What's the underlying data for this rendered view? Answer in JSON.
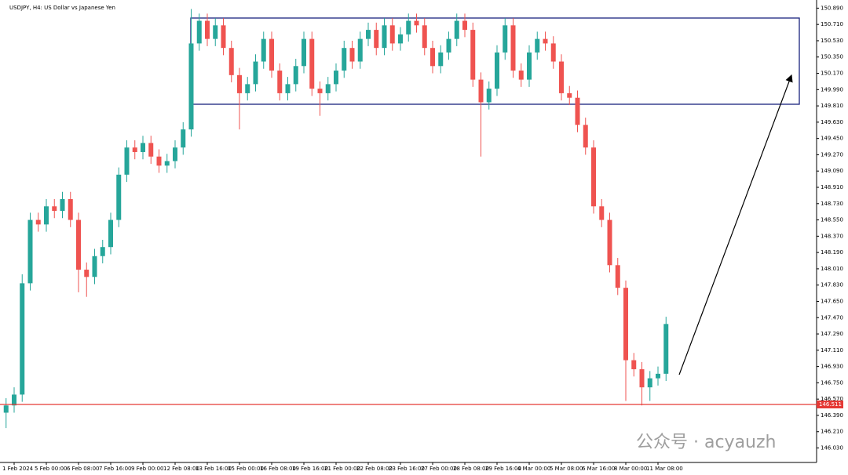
{
  "chart_data": {
    "type": "candlestick",
    "title": "USDJPY, H4: US Dollar vs Japanese Yen",
    "watermark": "公众号 · acyauzh",
    "up_color": "#26a69a",
    "down_color": "#ef5350",
    "price_line": 146.511,
    "price_line_color": "#e53935",
    "categories": [
      null,
      "1 Feb 2024",
      null,
      null,
      null,
      "5 Feb 00:00",
      null,
      null,
      null,
      "6 Feb 08:00",
      null,
      null,
      null,
      "7 Feb 16:00",
      null,
      null,
      null,
      "9 Feb 00:00",
      null,
      null,
      null,
      "12 Feb 08:00",
      null,
      null,
      null,
      "13 Feb 16:00",
      null,
      null,
      null,
      "15 Feb 00:00",
      null,
      null,
      null,
      "16 Feb 08:00",
      null,
      null,
      null,
      "19 Feb 16:00",
      null,
      null,
      null,
      "21 Feb 00:00",
      null,
      null,
      null,
      "22 Feb 08:00",
      null,
      null,
      null,
      "23 Feb 16:00",
      null,
      null,
      null,
      "27 Feb 00:00",
      null,
      null,
      null,
      "28 Feb 08:00",
      null,
      null,
      null,
      "29 Feb 16:00",
      null,
      null,
      null,
      "4 Mar 00:00",
      null,
      null,
      null,
      "5 Mar 08:00",
      null,
      null,
      null,
      "6 Mar 16:00",
      null,
      null,
      null,
      "8 Mar 00:00",
      null,
      null,
      null,
      "11 Mar 08:00",
      null
    ],
    "open": [
      146.42,
      146.5,
      146.62,
      147.85,
      148.55,
      148.5,
      148.7,
      148.65,
      148.78,
      148.55,
      148.0,
      147.92,
      148.15,
      148.25,
      148.55,
      149.05,
      149.35,
      149.3,
      149.4,
      149.25,
      149.15,
      149.2,
      149.35,
      149.55,
      150.5,
      150.75,
      150.55,
      150.7,
      150.45,
      150.15,
      149.95,
      150.05,
      150.3,
      150.55,
      150.2,
      149.95,
      150.05,
      150.25,
      150.55,
      150.0,
      149.95,
      150.05,
      150.2,
      150.45,
      150.3,
      150.55,
      150.65,
      150.45,
      150.7,
      150.5,
      150.6,
      150.75,
      150.7,
      150.45,
      150.25,
      150.4,
      150.55,
      150.75,
      150.65,
      150.1,
      149.85,
      150.0,
      150.4,
      150.7,
      150.2,
      150.1,
      150.4,
      150.55,
      150.5,
      150.3,
      149.95,
      149.9,
      149.6,
      149.35,
      148.7,
      148.55,
      148.05,
      147.8,
      147.0,
      146.9,
      146.7,
      146.8,
      146.85
    ],
    "high": [
      146.58,
      146.7,
      147.95,
      148.63,
      148.63,
      148.78,
      148.78,
      148.86,
      148.86,
      148.63,
      148.08,
      148.23,
      148.33,
      148.63,
      149.13,
      149.43,
      149.43,
      149.48,
      149.48,
      149.33,
      149.28,
      149.43,
      149.63,
      150.88,
      150.83,
      150.83,
      150.78,
      150.78,
      150.53,
      150.23,
      150.13,
      150.38,
      150.63,
      150.63,
      150.28,
      150.13,
      150.33,
      150.63,
      150.63,
      150.08,
      150.13,
      150.28,
      150.53,
      150.53,
      150.63,
      150.73,
      150.73,
      150.78,
      150.78,
      150.68,
      150.83,
      150.83,
      150.78,
      150.53,
      150.48,
      150.63,
      150.83,
      150.83,
      150.73,
      150.18,
      150.08,
      150.48,
      150.78,
      150.78,
      150.28,
      150.48,
      150.63,
      150.63,
      150.58,
      150.38,
      150.03,
      149.98,
      149.68,
      149.43,
      148.78,
      148.63,
      148.13,
      147.88,
      147.08,
      146.98,
      146.88,
      146.93,
      147.48
    ],
    "low": [
      146.25,
      146.42,
      146.54,
      147.77,
      148.42,
      148.42,
      148.57,
      148.57,
      148.47,
      147.75,
      147.7,
      147.84,
      148.07,
      148.17,
      148.47,
      148.97,
      149.22,
      149.22,
      149.17,
      149.07,
      149.07,
      149.12,
      149.27,
      149.47,
      150.42,
      150.47,
      150.47,
      150.37,
      150.07,
      149.55,
      149.87,
      149.97,
      150.22,
      150.12,
      149.87,
      149.87,
      149.97,
      150.17,
      149.92,
      149.7,
      149.87,
      149.97,
      150.12,
      150.22,
      150.22,
      150.47,
      150.37,
      150.37,
      150.42,
      150.42,
      150.52,
      150.62,
      150.37,
      150.17,
      150.17,
      150.32,
      150.47,
      150.57,
      150.02,
      149.25,
      149.77,
      149.92,
      150.32,
      150.12,
      150.02,
      150.02,
      150.32,
      150.42,
      150.22,
      149.87,
      149.82,
      149.52,
      149.27,
      148.62,
      148.47,
      147.97,
      147.72,
      146.55,
      146.82,
      146.5,
      146.55,
      146.72,
      146.77
    ],
    "close": [
      146.5,
      146.62,
      147.85,
      148.55,
      148.5,
      148.7,
      148.65,
      148.78,
      148.55,
      148.0,
      147.92,
      148.15,
      148.25,
      148.55,
      149.05,
      149.35,
      149.3,
      149.4,
      149.25,
      149.15,
      149.2,
      149.35,
      149.55,
      150.5,
      150.75,
      150.55,
      150.7,
      150.45,
      150.15,
      149.95,
      150.05,
      150.3,
      150.55,
      150.2,
      149.95,
      150.05,
      150.25,
      150.55,
      150.0,
      149.95,
      150.05,
      150.2,
      150.45,
      150.3,
      150.55,
      150.65,
      150.45,
      150.7,
      150.5,
      150.6,
      150.75,
      150.7,
      150.45,
      150.25,
      150.4,
      150.55,
      150.75,
      150.65,
      150.1,
      149.85,
      150.0,
      150.4,
      150.7,
      150.2,
      150.1,
      150.4,
      150.55,
      150.5,
      150.3,
      149.95,
      149.9,
      149.6,
      149.35,
      148.7,
      148.55,
      148.05,
      147.8,
      147.0,
      146.9,
      146.7,
      146.8,
      146.85,
      147.4
    ],
    "ylim": [
      145.87,
      150.98
    ],
    "yticks": [
      {
        "value": 150.89,
        "label": "150.890"
      },
      {
        "value": 150.71,
        "label": "150.710"
      },
      {
        "value": 150.53,
        "label": "150.530"
      },
      {
        "value": 150.35,
        "label": "150.350"
      },
      {
        "value": 150.17,
        "label": "150.170"
      },
      {
        "value": 149.99,
        "label": "149.990"
      },
      {
        "value": 149.81,
        "label": "149.810"
      },
      {
        "value": 149.63,
        "label": "149.630"
      },
      {
        "value": 149.45,
        "label": "149.450"
      },
      {
        "value": 149.27,
        "label": "149.270"
      },
      {
        "value": 149.09,
        "label": "149.090"
      },
      {
        "value": 148.91,
        "label": "148.910"
      },
      {
        "value": 148.73,
        "label": "148.730"
      },
      {
        "value": 148.55,
        "label": "148.550"
      },
      {
        "value": 148.37,
        "label": "148.370"
      },
      {
        "value": 148.19,
        "label": "148.190"
      },
      {
        "value": 148.01,
        "label": "148.010"
      },
      {
        "value": 147.83,
        "label": "147.830"
      },
      {
        "value": 147.65,
        "label": "147.650"
      },
      {
        "value": 147.47,
        "label": "147.470"
      },
      {
        "value": 147.29,
        "label": "147.290"
      },
      {
        "value": 147.11,
        "label": "147.110"
      },
      {
        "value": 146.93,
        "label": "146.930"
      },
      {
        "value": 146.75,
        "label": "146.750"
      },
      {
        "value": 146.57,
        "label": "146.570"
      },
      {
        "value": 146.39,
        "label": "146.390"
      },
      {
        "value": 146.21,
        "label": "146.210"
      },
      {
        "value": 146.03,
        "label": "146.030"
      }
    ]
  }
}
